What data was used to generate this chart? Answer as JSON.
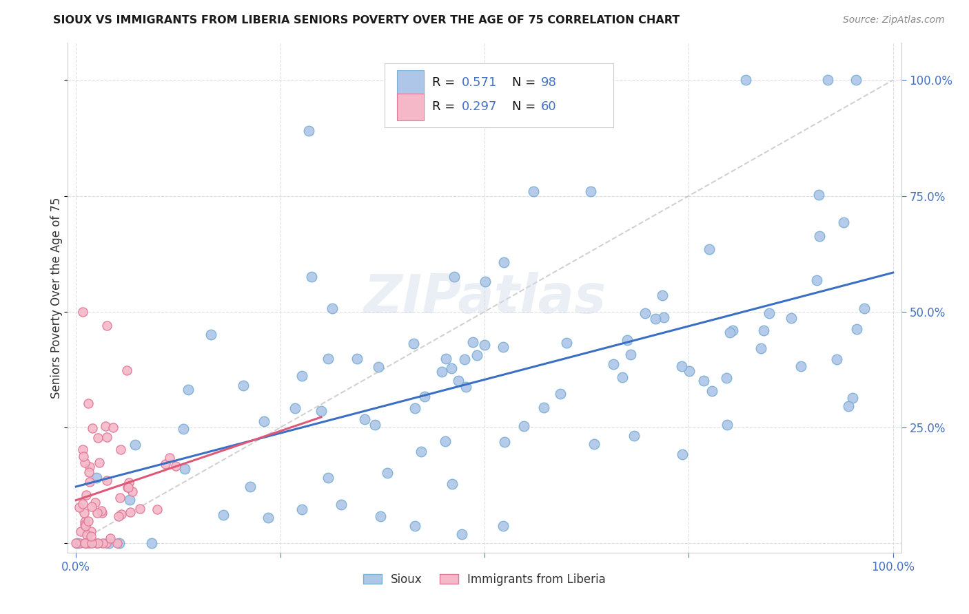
{
  "title": "SIOUX VS IMMIGRANTS FROM LIBERIA SENIORS POVERTY OVER THE AGE OF 75 CORRELATION CHART",
  "source": "Source: ZipAtlas.com",
  "ylabel": "Seniors Poverty Over the Age of 75",
  "sioux_color": "#aec6e8",
  "sioux_edge_color": "#7aafd4",
  "liberia_color": "#f4b8c8",
  "liberia_edge_color": "#e07898",
  "trend_sioux_color": "#3a6fc4",
  "trend_liberia_color": "#e05878",
  "diagonal_color": "#cccccc",
  "legend_sioux_label": "Sioux",
  "legend_liberia_label": "Immigrants from Liberia",
  "R_sioux": "0.571",
  "N_sioux": "98",
  "R_liberia": "0.297",
  "N_liberia": "60",
  "r_eq_color": "#000000",
  "rn_val_color": "#4472c4",
  "watermark_text": "ZIPatlas",
  "watermark_color": "#d0dde8",
  "background_color": "#ffffff",
  "grid_color": "#dddddd",
  "tick_color": "#4472c4",
  "ylabel_color": "#333333"
}
